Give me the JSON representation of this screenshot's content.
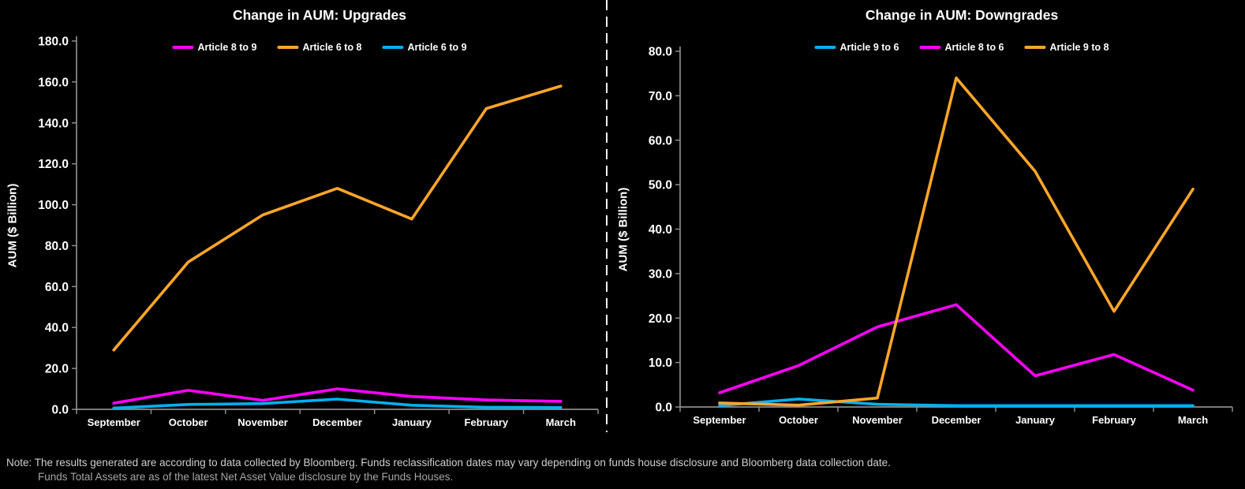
{
  "page": {
    "background": "#000000",
    "divider_color": "#ffffff",
    "axis_color": "#8c8c8c",
    "text_color": "#ffffff"
  },
  "note": {
    "line1": "Note: The results generated are according to data collected by Bloomberg. Funds reclassification dates may vary depending on funds house disclosure and Bloomberg data collection date.",
    "line2": "Funds Total Assets are as of the latest Net Asset Value disclosure by the Funds Houses."
  },
  "chart_data": [
    {
      "type": "line",
      "title": "Change in AUM: Upgrades",
      "ylabel": "AUM ($ Billion)",
      "xlabel": "",
      "ylim": [
        0,
        180
      ],
      "ytick_step": 20,
      "ytick_labels": [
        "0.0",
        "20.0",
        "40.0",
        "60.0",
        "80.0",
        "100.0",
        "120.0",
        "140.0",
        "160.0",
        "180.0"
      ],
      "grid": false,
      "legend_position": "top",
      "categories": [
        "September",
        "October",
        "November",
        "December",
        "January",
        "February",
        "March"
      ],
      "series": [
        {
          "name": "Article 8 to 9",
          "color": "#FF00FF",
          "values": [
            3,
            9.3,
            4.4,
            10,
            6.3,
            4.6,
            3.9
          ]
        },
        {
          "name": "Article 6 to 8",
          "color": "#FFA629",
          "values": [
            29,
            72,
            95,
            108,
            93,
            147,
            158
          ]
        },
        {
          "name": "Article 6 to 9",
          "color": "#00B0F0",
          "values": [
            0.6,
            2.4,
            2.8,
            5,
            2,
            1,
            0.9
          ]
        }
      ]
    },
    {
      "type": "line",
      "title": "Change in AUM: Downgrades",
      "ylabel": "AUM ($ Billion)",
      "xlabel": "",
      "ylim": [
        0,
        80
      ],
      "ytick_step": 10,
      "ytick_labels": [
        "0.0",
        "10.0",
        "20.0",
        "30.0",
        "40.0",
        "50.0",
        "60.0",
        "70.0",
        "80.0"
      ],
      "grid": false,
      "legend_position": "top",
      "categories": [
        "September",
        "October",
        "November",
        "December",
        "January",
        "February",
        "March"
      ],
      "series": [
        {
          "name": "Article 9 to 6",
          "color": "#00B0F0",
          "values": [
            0.3,
            1.8,
            0.6,
            0.3,
            0.3,
            0.3,
            0.3
          ]
        },
        {
          "name": "Article 8 to 6",
          "color": "#FF00FF",
          "values": [
            3.2,
            9.3,
            18,
            23,
            7,
            11.8,
            3.8
          ]
        },
        {
          "name": "Article 9 to 8",
          "color": "#FFA629",
          "values": [
            0.9,
            0.4,
            2,
            74,
            53,
            21.5,
            49
          ]
        }
      ]
    }
  ]
}
